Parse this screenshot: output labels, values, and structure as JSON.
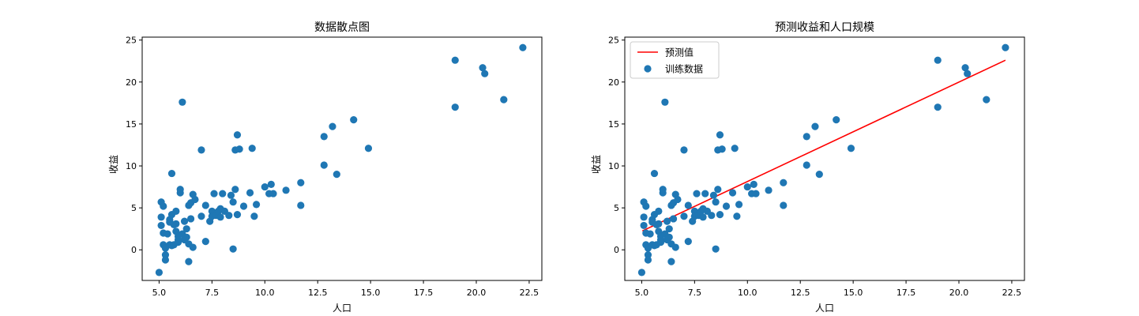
{
  "chart_data": [
    {
      "type": "scatter",
      "title": "数据散点图",
      "xlabel": "人口",
      "ylabel": "收益",
      "xlim": [
        4.2,
        23.1
      ],
      "ylim": [
        -3.65,
        25.35
      ],
      "xticks": [
        "5.0",
        "7.5",
        "10.0",
        "12.5",
        "15.0",
        "17.5",
        "20.0",
        "22.5"
      ],
      "yticks": [
        "0",
        "5",
        "10",
        "15",
        "20",
        "25"
      ],
      "colors": {
        "points": "#1f77b4"
      },
      "legend": [],
      "series": [
        {
          "points": [
            [
              5.0,
              -2.7
            ],
            [
              5.1,
              5.7
            ],
            [
              5.1,
              3.9
            ],
            [
              5.1,
              2.9
            ],
            [
              5.2,
              5.2
            ],
            [
              5.2,
              0.6
            ],
            [
              5.2,
              2.0
            ],
            [
              5.3,
              -0.6
            ],
            [
              5.3,
              0.2
            ],
            [
              5.3,
              -1.2
            ],
            [
              5.4,
              1.9
            ],
            [
              5.5,
              3.6
            ],
            [
              5.5,
              3.3
            ],
            [
              5.5,
              0.6
            ],
            [
              5.6,
              4.2
            ],
            [
              5.6,
              9.1
            ],
            [
              5.6,
              0.5
            ],
            [
              5.7,
              3.0
            ],
            [
              5.7,
              0.6
            ],
            [
              5.8,
              4.6
            ],
            [
              5.8,
              3.1
            ],
            [
              5.8,
              2.2
            ],
            [
              5.9,
              1.2
            ],
            [
              5.9,
              1.6
            ],
            [
              5.9,
              0.9
            ],
            [
              6.0,
              6.8
            ],
            [
              6.0,
              7.2
            ],
            [
              6.1,
              1.9
            ],
            [
              6.1,
              17.6
            ],
            [
              6.2,
              3.4
            ],
            [
              6.2,
              1.2
            ],
            [
              6.3,
              1.5
            ],
            [
              6.3,
              2.5
            ],
            [
              6.4,
              -1.4
            ],
            [
              6.4,
              5.3
            ],
            [
              6.4,
              0.7
            ],
            [
              6.5,
              3.7
            ],
            [
              6.5,
              5.6
            ],
            [
              6.6,
              6.6
            ],
            [
              6.6,
              0.3
            ],
            [
              6.7,
              6.0
            ],
            [
              7.0,
              4.0
            ],
            [
              7.0,
              11.9
            ],
            [
              7.2,
              1.0
            ],
            [
              7.2,
              5.3
            ],
            [
              7.4,
              3.4
            ],
            [
              7.5,
              4.6
            ],
            [
              7.5,
              4.0
            ],
            [
              7.6,
              6.7
            ],
            [
              7.7,
              4.1
            ],
            [
              7.8,
              4.6
            ],
            [
              7.9,
              4.9
            ],
            [
              7.9,
              3.9
            ],
            [
              8.0,
              6.7
            ],
            [
              8.1,
              4.6
            ],
            [
              8.3,
              4.1
            ],
            [
              8.4,
              6.5
            ],
            [
              8.5,
              5.7
            ],
            [
              8.5,
              0.1
            ],
            [
              8.6,
              11.9
            ],
            [
              8.6,
              7.2
            ],
            [
              8.7,
              4.2
            ],
            [
              8.7,
              13.7
            ],
            [
              8.8,
              12.0
            ],
            [
              9.0,
              5.2
            ],
            [
              9.3,
              6.8
            ],
            [
              9.4,
              12.1
            ],
            [
              9.5,
              4.0
            ],
            [
              9.6,
              5.4
            ],
            [
              10.0,
              7.5
            ],
            [
              10.2,
              6.7
            ],
            [
              10.3,
              7.8
            ],
            [
              10.4,
              6.7
            ],
            [
              11.0,
              7.1
            ],
            [
              11.7,
              8.0
            ],
            [
              11.7,
              5.3
            ],
            [
              12.8,
              10.1
            ],
            [
              12.8,
              13.5
            ],
            [
              13.2,
              14.7
            ],
            [
              13.4,
              9.0
            ],
            [
              14.2,
              15.5
            ],
            [
              14.9,
              12.1
            ],
            [
              19.0,
              22.6
            ],
            [
              19.0,
              17.0
            ],
            [
              20.3,
              21.7
            ],
            [
              20.4,
              21.0
            ],
            [
              21.3,
              17.9
            ],
            [
              22.2,
              24.1
            ]
          ]
        }
      ]
    },
    {
      "type": "scatter",
      "title": "预测收益和人口规模",
      "xlabel": "人口",
      "ylabel": "收益",
      "xlim": [
        4.2,
        23.1
      ],
      "ylim": [
        -3.65,
        25.35
      ],
      "xticks": [
        "5.0",
        "7.5",
        "10.0",
        "12.5",
        "15.0",
        "17.5",
        "20.0",
        "22.5"
      ],
      "yticks": [
        "0",
        "5",
        "10",
        "15",
        "20",
        "25"
      ],
      "colors": {
        "points": "#1f77b4",
        "line": "#ff0000"
      },
      "legend": [
        "预测值",
        "训练数据"
      ],
      "legend_position": "top-left",
      "series": [
        {
          "name": "预测值",
          "type": "line",
          "points": [
            [
              5.03,
              2.25
            ],
            [
              22.2,
              22.6
            ]
          ]
        },
        {
          "name": "训练数据",
          "type": "scatter",
          "points": [
            [
              5.0,
              -2.7
            ],
            [
              5.1,
              5.7
            ],
            [
              5.1,
              3.9
            ],
            [
              5.1,
              2.9
            ],
            [
              5.2,
              5.2
            ],
            [
              5.2,
              0.6
            ],
            [
              5.2,
              2.0
            ],
            [
              5.3,
              -0.6
            ],
            [
              5.3,
              0.2
            ],
            [
              5.3,
              -1.2
            ],
            [
              5.4,
              1.9
            ],
            [
              5.5,
              3.6
            ],
            [
              5.5,
              3.3
            ],
            [
              5.5,
              0.6
            ],
            [
              5.6,
              4.2
            ],
            [
              5.6,
              9.1
            ],
            [
              5.6,
              0.5
            ],
            [
              5.7,
              3.0
            ],
            [
              5.7,
              0.6
            ],
            [
              5.8,
              4.6
            ],
            [
              5.8,
              3.1
            ],
            [
              5.8,
              2.2
            ],
            [
              5.9,
              1.2
            ],
            [
              5.9,
              1.6
            ],
            [
              5.9,
              0.9
            ],
            [
              6.0,
              6.8
            ],
            [
              6.0,
              7.2
            ],
            [
              6.1,
              1.9
            ],
            [
              6.1,
              17.6
            ],
            [
              6.2,
              3.4
            ],
            [
              6.2,
              1.2
            ],
            [
              6.3,
              1.5
            ],
            [
              6.3,
              2.5
            ],
            [
              6.4,
              -1.4
            ],
            [
              6.4,
              5.3
            ],
            [
              6.4,
              0.7
            ],
            [
              6.5,
              3.7
            ],
            [
              6.5,
              5.6
            ],
            [
              6.6,
              6.6
            ],
            [
              6.6,
              0.3
            ],
            [
              6.7,
              6.0
            ],
            [
              7.0,
              4.0
            ],
            [
              7.0,
              11.9
            ],
            [
              7.2,
              1.0
            ],
            [
              7.2,
              5.3
            ],
            [
              7.4,
              3.4
            ],
            [
              7.5,
              4.6
            ],
            [
              7.5,
              4.0
            ],
            [
              7.6,
              6.7
            ],
            [
              7.7,
              4.1
            ],
            [
              7.8,
              4.6
            ],
            [
              7.9,
              4.9
            ],
            [
              7.9,
              3.9
            ],
            [
              8.0,
              6.7
            ],
            [
              8.1,
              4.6
            ],
            [
              8.3,
              4.1
            ],
            [
              8.4,
              6.5
            ],
            [
              8.5,
              5.7
            ],
            [
              8.5,
              0.1
            ],
            [
              8.6,
              11.9
            ],
            [
              8.6,
              7.2
            ],
            [
              8.7,
              4.2
            ],
            [
              8.7,
              13.7
            ],
            [
              8.8,
              12.0
            ],
            [
              9.0,
              5.2
            ],
            [
              9.3,
              6.8
            ],
            [
              9.4,
              12.1
            ],
            [
              9.5,
              4.0
            ],
            [
              9.6,
              5.4
            ],
            [
              10.0,
              7.5
            ],
            [
              10.2,
              6.7
            ],
            [
              10.3,
              7.8
            ],
            [
              10.4,
              6.7
            ],
            [
              11.0,
              7.1
            ],
            [
              11.7,
              8.0
            ],
            [
              11.7,
              5.3
            ],
            [
              12.8,
              10.1
            ],
            [
              12.8,
              13.5
            ],
            [
              13.2,
              14.7
            ],
            [
              13.4,
              9.0
            ],
            [
              14.2,
              15.5
            ],
            [
              14.9,
              12.1
            ],
            [
              19.0,
              22.6
            ],
            [
              19.0,
              17.0
            ],
            [
              20.3,
              21.7
            ],
            [
              20.4,
              21.0
            ],
            [
              21.3,
              17.9
            ],
            [
              22.2,
              24.1
            ]
          ]
        }
      ]
    }
  ]
}
